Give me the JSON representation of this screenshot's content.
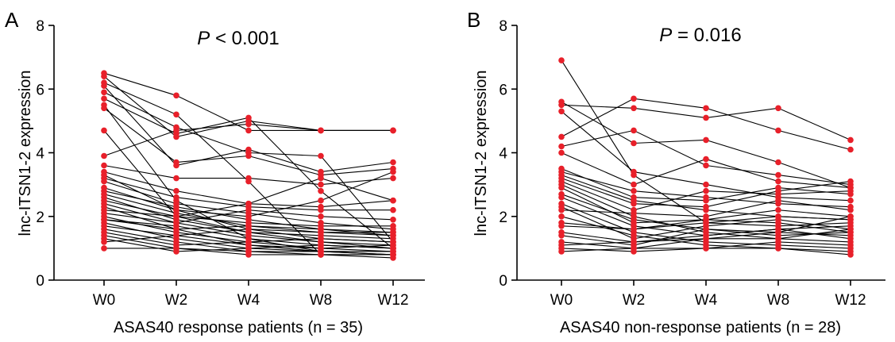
{
  "chart_data": [
    {
      "type": "line",
      "panel": "A",
      "stat": {
        "prefix": "P",
        "rest": " < 0.001"
      },
      "xlabel": "ASAS40 response patients (n = 35)",
      "ylabel": "lnc-ITSN1-2 expression",
      "categories": [
        "W0",
        "W2",
        "W4",
        "W8",
        "W12"
      ],
      "yticks": [
        "0",
        "2",
        "4",
        "6",
        "8"
      ],
      "ylim": [
        0,
        8
      ],
      "grid": false,
      "marker_color": "#e8202a",
      "line_color": "#000000",
      "series": [
        {
          "values": [
            6.5,
            5.8,
            4.7,
            4.7,
            4.7
          ]
        },
        {
          "values": [
            6.4,
            4.5,
            5.0,
            4.7,
            4.7
          ]
        },
        {
          "values": [
            6.2,
            5.2,
            3.1,
            0.8,
            0.8
          ]
        },
        {
          "values": [
            6.1,
            3.6,
            4.1,
            3.4,
            3.7
          ]
        },
        {
          "values": [
            5.9,
            4.8,
            4.0,
            3.9,
            1.2
          ]
        },
        {
          "values": [
            5.7,
            4.6,
            5.1,
            2.8,
            1.0
          ]
        },
        {
          "values": [
            5.5,
            2.5,
            1.3,
            0.9,
            0.9
          ]
        },
        {
          "values": [
            5.4,
            3.7,
            3.9,
            3.3,
            3.5
          ]
        },
        {
          "values": [
            4.7,
            2.0,
            1.5,
            1.2,
            1.1
          ]
        },
        {
          "values": [
            3.9,
            4.7,
            4.9,
            4.7,
            4.7
          ]
        },
        {
          "values": [
            3.6,
            3.2,
            3.2,
            3.0,
            3.2
          ]
        },
        {
          "values": [
            3.4,
            2.8,
            2.4,
            2.3,
            2.5
          ]
        },
        {
          "values": [
            3.3,
            2.2,
            1.6,
            1.3,
            1.2
          ]
        },
        {
          "values": [
            3.2,
            2.6,
            2.3,
            2.2,
            2.2
          ]
        },
        {
          "values": [
            3.1,
            2.4,
            2.1,
            1.8,
            1.6
          ]
        },
        {
          "values": [
            2.8,
            2.3,
            1.9,
            1.6,
            1.4
          ]
        },
        {
          "values": [
            2.7,
            2.1,
            1.7,
            1.5,
            1.5
          ]
        },
        {
          "values": [
            2.6,
            1.9,
            1.5,
            1.4,
            1.3
          ]
        },
        {
          "values": [
            2.5,
            2.0,
            2.4,
            3.2,
            2.5
          ]
        },
        {
          "values": [
            2.3,
            1.6,
            1.1,
            0.9,
            0.8
          ]
        },
        {
          "values": [
            2.2,
            2.0,
            1.8,
            1.7,
            1.7
          ]
        },
        {
          "values": [
            2.1,
            1.8,
            1.4,
            1.2,
            1.0
          ]
        },
        {
          "values": [
            2.0,
            1.5,
            1.2,
            1.0,
            0.9
          ]
        },
        {
          "values": [
            1.9,
            1.7,
            1.3,
            1.1,
            1.0
          ]
        },
        {
          "values": [
            1.8,
            1.3,
            1.0,
            0.9,
            0.8
          ]
        },
        {
          "values": [
            1.7,
            1.4,
            1.6,
            1.5,
            1.4
          ]
        },
        {
          "values": [
            1.6,
            1.2,
            0.9,
            0.8,
            0.8
          ]
        },
        {
          "values": [
            1.5,
            1.1,
            1.2,
            1.3,
            1.2
          ]
        },
        {
          "values": [
            1.4,
            1.0,
            0.8,
            0.8,
            0.7
          ]
        },
        {
          "values": [
            1.3,
            0.9,
            1.0,
            1.1,
            1.0
          ]
        },
        {
          "values": [
            1.0,
            1.0,
            0.9,
            0.9,
            0.9
          ]
        },
        {
          "values": [
            2.9,
            2.2,
            2.0,
            2.5,
            3.4
          ]
        },
        {
          "values": [
            2.4,
            1.8,
            2.2,
            2.0,
            1.9
          ]
        },
        {
          "values": [
            1.9,
            1.6,
            1.7,
            1.6,
            1.5
          ]
        },
        {
          "values": [
            1.2,
            1.4,
            1.1,
            1.0,
            1.1
          ]
        }
      ]
    },
    {
      "type": "line",
      "panel": "B",
      "stat": {
        "prefix": "P",
        "rest": " = 0.016"
      },
      "xlabel": "ASAS40 non-response patients (n = 28)",
      "ylabel": "lnc-ITSN1-2 expression",
      "categories": [
        "W0",
        "W2",
        "W4",
        "W8",
        "W12"
      ],
      "yticks": [
        "0",
        "2",
        "4",
        "6",
        "8"
      ],
      "ylim": [
        0,
        8
      ],
      "grid": false,
      "marker_color": "#e8202a",
      "line_color": "#000000",
      "series": [
        {
          "values": [
            6.9,
            3.3,
            1.8,
            2.0,
            1.9
          ]
        },
        {
          "values": [
            5.6,
            4.3,
            4.4,
            3.7,
            2.9
          ]
        },
        {
          "values": [
            5.5,
            5.4,
            5.1,
            5.4,
            4.4
          ]
        },
        {
          "values": [
            5.3,
            3.4,
            3.0,
            2.6,
            2.5
          ]
        },
        {
          "values": [
            4.5,
            5.7,
            5.4,
            4.7,
            4.1
          ]
        },
        {
          "values": [
            4.2,
            4.7,
            3.6,
            3.3,
            3.0
          ]
        },
        {
          "values": [
            4.0,
            3.0,
            3.8,
            3.1,
            2.9
          ]
        },
        {
          "values": [
            3.4,
            2.8,
            2.6,
            2.4,
            2.3
          ]
        },
        {
          "values": [
            3.3,
            2.5,
            2.2,
            2.0,
            1.9
          ]
        },
        {
          "values": [
            3.1,
            2.2,
            2.8,
            2.7,
            2.8
          ]
        },
        {
          "values": [
            3.0,
            2.0,
            1.5,
            1.3,
            1.2
          ]
        },
        {
          "values": [
            2.9,
            1.8,
            1.9,
            2.2,
            2.0
          ]
        },
        {
          "values": [
            2.6,
            1.7,
            1.4,
            1.6,
            1.7
          ]
        },
        {
          "values": [
            2.4,
            1.5,
            1.2,
            1.1,
            1.0
          ]
        },
        {
          "values": [
            2.3,
            1.3,
            1.7,
            1.9,
            1.6
          ]
        },
        {
          "values": [
            2.2,
            2.1,
            2.0,
            2.5,
            2.2
          ]
        },
        {
          "values": [
            2.0,
            1.4,
            1.1,
            1.0,
            0.9
          ]
        },
        {
          "values": [
            1.7,
            1.6,
            1.8,
            1.7,
            1.8
          ]
        },
        {
          "values": [
            1.5,
            1.2,
            1.3,
            1.5,
            1.4
          ]
        },
        {
          "values": [
            1.4,
            1.1,
            1.6,
            1.4,
            1.5
          ]
        },
        {
          "values": [
            1.2,
            1.0,
            1.0,
            1.2,
            1.1
          ]
        },
        {
          "values": [
            1.0,
            0.9,
            1.0,
            1.0,
            0.8
          ]
        },
        {
          "values": [
            0.9,
            1.0,
            1.3,
            1.3,
            1.6
          ]
        },
        {
          "values": [
            3.2,
            2.4,
            2.3,
            2.8,
            3.1
          ]
        },
        {
          "values": [
            2.7,
            1.9,
            1.6,
            1.5,
            2.0
          ]
        },
        {
          "values": [
            1.8,
            1.6,
            1.9,
            1.8,
            1.5
          ]
        },
        {
          "values": [
            1.1,
            1.2,
            1.4,
            1.6,
            1.3
          ]
        },
        {
          "values": [
            3.5,
            2.6,
            2.5,
            2.9,
            2.7
          ]
        }
      ]
    }
  ]
}
